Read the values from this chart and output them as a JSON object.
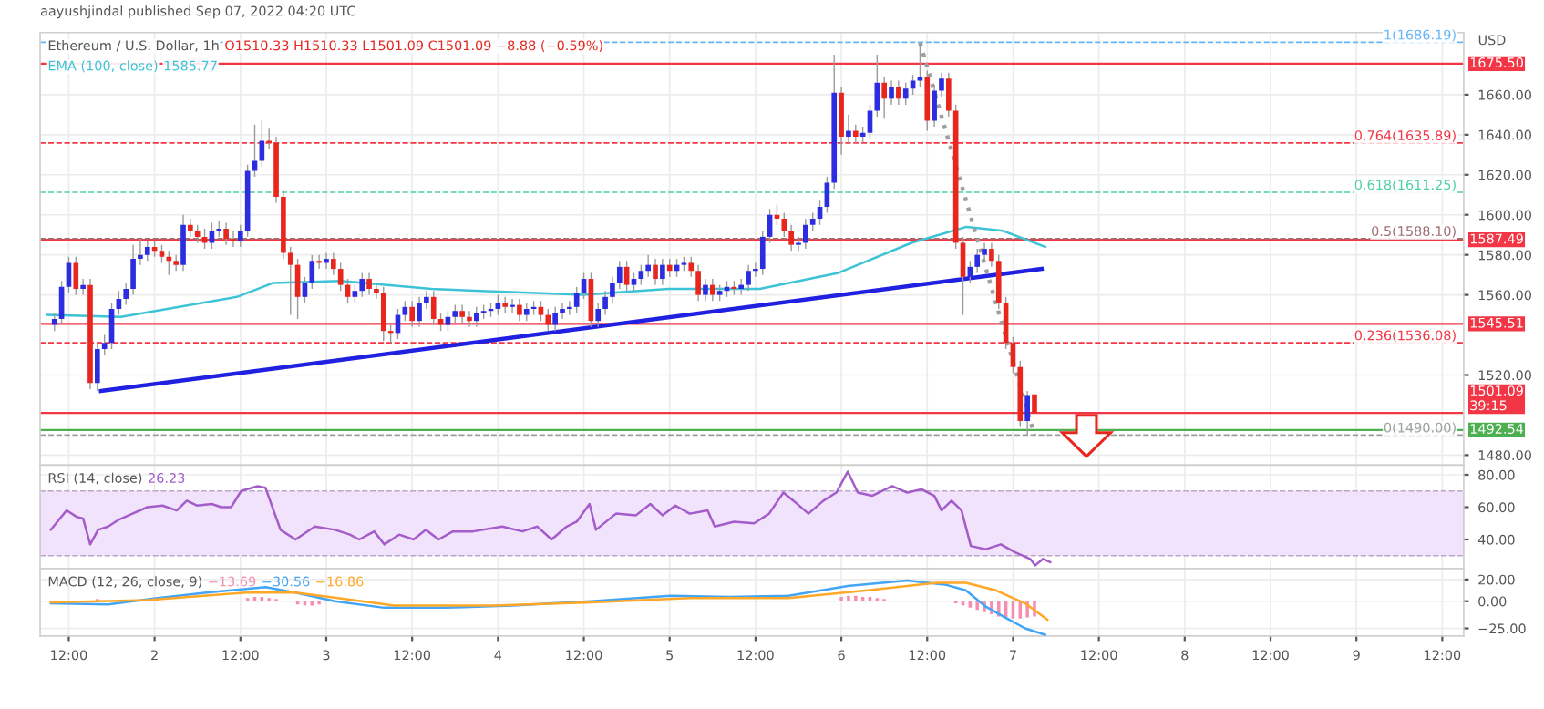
{
  "chart_data": [
    {
      "type": "candlestick",
      "title": "Ethereum / U.S. Dollar, 1h",
      "subtitle": "aayushjindal published Sep 07, 2022 04:20 UTC",
      "ylabel": "USD",
      "annotations": [
        "O1510.33 H1510.33 L1501.09 C1501.09 −8.88 (−0.59%)",
        "1585.77"
      ],
      "xlim": [
        "2022-09-01T08:00",
        "2022-09-09T15:00"
      ],
      "ylim": [
        1475,
        1691
      ],
      "yticks": [
        {
          "value": 1480,
          "label": "1480.00"
        },
        {
          "value": 1520,
          "label": "1520.00"
        },
        {
          "value": 1560,
          "label": "1560.00"
        },
        {
          "value": 1580,
          "label": "1580.00"
        },
        {
          "value": 1600,
          "label": "1600.00"
        },
        {
          "value": 1620,
          "label": "1620.00"
        },
        {
          "value": 1640,
          "label": "1640.00"
        },
        {
          "value": 1660,
          "label": "1660.00"
        }
      ],
      "grid": true,
      "tick_labels": "y",
      "series": [
        {
          "type": "candlestick",
          "x": [
            "2022-09-01T10:00",
            "2022-09-01T11:00",
            "2022-09-01T12:00",
            "2022-09-01T13:00",
            "2022-09-01T14:00",
            "2022-09-01T15:00",
            "2022-09-01T16:00",
            "2022-09-01T17:00",
            "2022-09-01T18:00",
            "2022-09-01T19:00",
            "2022-09-01T20:00",
            "2022-09-01T21:00",
            "2022-09-01T22:00",
            "2022-09-01T23:00",
            "2022-09-02T00:00",
            "2022-09-02T01:00",
            "2022-09-02T02:00",
            "2022-09-02T03:00",
            "2022-09-02T04:00",
            "2022-09-02T05:00",
            "2022-09-02T06:00",
            "2022-09-02T07:00",
            "2022-09-02T08:00",
            "2022-09-02T09:00",
            "2022-09-02T10:00",
            "2022-09-02T11:00",
            "2022-09-02T12:00",
            "2022-09-02T13:00",
            "2022-09-02T14:00",
            "2022-09-02T15:00",
            "2022-09-02T16:00",
            "2022-09-02T17:00",
            "2022-09-02T18:00",
            "2022-09-02T19:00",
            "2022-09-02T20:00",
            "2022-09-02T21:00",
            "2022-09-02T22:00",
            "2022-09-02T23:00",
            "2022-09-03T00:00",
            "2022-09-03T01:00",
            "2022-09-03T02:00",
            "2022-09-03T03:00",
            "2022-09-03T04:00",
            "2022-09-03T05:00",
            "2022-09-03T06:00",
            "2022-09-03T07:00",
            "2022-09-03T08:00",
            "2022-09-03T09:00",
            "2022-09-03T10:00",
            "2022-09-03T11:00",
            "2022-09-03T12:00",
            "2022-09-03T13:00",
            "2022-09-03T14:00",
            "2022-09-03T15:00",
            "2022-09-03T16:00",
            "2022-09-03T17:00",
            "2022-09-03T18:00",
            "2022-09-03T19:00",
            "2022-09-03T20:00",
            "2022-09-03T21:00",
            "2022-09-03T22:00",
            "2022-09-03T23:00",
            "2022-09-04T00:00",
            "2022-09-04T01:00",
            "2022-09-04T02:00",
            "2022-09-04T03:00",
            "2022-09-04T04:00",
            "2022-09-04T05:00",
            "2022-09-04T06:00",
            "2022-09-04T07:00",
            "2022-09-04T08:00",
            "2022-09-04T09:00",
            "2022-09-04T10:00",
            "2022-09-04T11:00",
            "2022-09-04T12:00",
            "2022-09-04T13:00",
            "2022-09-04T14:00",
            "2022-09-04T15:00",
            "2022-09-04T16:00",
            "2022-09-04T17:00",
            "2022-09-04T18:00",
            "2022-09-04T19:00",
            "2022-09-04T20:00",
            "2022-09-04T21:00",
            "2022-09-04T22:00",
            "2022-09-04T23:00",
            "2022-09-05T00:00",
            "2022-09-05T01:00",
            "2022-09-05T02:00",
            "2022-09-05T03:00",
            "2022-09-05T04:00",
            "2022-09-05T05:00",
            "2022-09-05T06:00",
            "2022-09-05T07:00",
            "2022-09-05T08:00",
            "2022-09-05T09:00",
            "2022-09-05T10:00",
            "2022-09-05T11:00",
            "2022-09-05T12:00",
            "2022-09-05T13:00",
            "2022-09-05T14:00",
            "2022-09-05T15:00",
            "2022-09-05T16:00",
            "2022-09-05T17:00",
            "2022-09-05T18:00",
            "2022-09-05T19:00",
            "2022-09-05T20:00",
            "2022-09-05T21:00",
            "2022-09-05T22:00",
            "2022-09-05T23:00",
            "2022-09-06T00:00",
            "2022-09-06T01:00",
            "2022-09-06T02:00",
            "2022-09-06T03:00",
            "2022-09-06T04:00",
            "2022-09-06T05:00",
            "2022-09-06T06:00",
            "2022-09-06T07:00",
            "2022-09-06T08:00",
            "2022-09-06T09:00",
            "2022-09-06T10:00",
            "2022-09-06T11:00",
            "2022-09-06T12:00",
            "2022-09-06T13:00",
            "2022-09-06T14:00",
            "2022-09-06T15:00",
            "2022-09-06T16:00",
            "2022-09-06T17:00",
            "2022-09-06T18:00",
            "2022-09-06T19:00",
            "2022-09-06T20:00",
            "2022-09-06T21:00",
            "2022-09-06T22:00",
            "2022-09-06T23:00",
            "2022-09-07T00:00",
            "2022-09-07T01:00",
            "2022-09-07T02:00",
            "2022-09-07T03:00"
          ],
          "ohlc": [
            [
              1545,
              1551,
              1542,
              1548
            ],
            [
              1548,
              1567,
              1545,
              1564
            ],
            [
              1564,
              1579,
              1561,
              1576
            ],
            [
              1576,
              1579,
              1560,
              1563
            ],
            [
              1563,
              1568,
              1560,
              1565
            ],
            [
              1565,
              1568,
              1513,
              1516
            ],
            [
              1516,
              1536,
              1512,
              1533
            ],
            [
              1533,
              1540,
              1530,
              1536
            ],
            [
              1536,
              1556,
              1533,
              1553
            ],
            [
              1553,
              1562,
              1550,
              1558
            ],
            [
              1558,
              1566,
              1555,
              1563
            ],
            [
              1563,
              1585,
              1560,
              1578
            ],
            [
              1578,
              1588,
              1575,
              1580
            ],
            [
              1580,
              1587,
              1577,
              1584
            ],
            [
              1584,
              1587,
              1579,
              1582
            ],
            [
              1582,
              1585,
              1576,
              1579
            ],
            [
              1579,
              1582,
              1570,
              1577
            ],
            [
              1577,
              1580,
              1572,
              1575
            ],
            [
              1575,
              1600,
              1572,
              1595
            ],
            [
              1595,
              1598,
              1589,
              1592
            ],
            [
              1592,
              1595,
              1586,
              1589
            ],
            [
              1589,
              1593,
              1583,
              1586
            ],
            [
              1586,
              1596,
              1583,
              1592
            ],
            [
              1592,
              1597,
              1589,
              1593
            ],
            [
              1593,
              1596,
              1585,
              1588
            ],
            [
              1588,
              1592,
              1584,
              1587
            ],
            [
              1587,
              1595,
              1584,
              1592
            ],
            [
              1592,
              1625,
              1589,
              1622
            ],
            [
              1622,
              1645,
              1619,
              1627
            ],
            [
              1627,
              1647,
              1624,
              1637
            ],
            [
              1637,
              1643,
              1633,
              1636
            ],
            [
              1636,
              1639,
              1606,
              1609
            ],
            [
              1609,
              1612,
              1578,
              1581
            ],
            [
              1581,
              1584,
              1550,
              1575
            ],
            [
              1575,
              1578,
              1548,
              1559
            ],
            [
              1559,
              1569,
              1556,
              1566
            ],
            [
              1566,
              1580,
              1563,
              1577
            ],
            [
              1577,
              1580,
              1573,
              1576
            ],
            [
              1576,
              1581,
              1573,
              1578
            ],
            [
              1578,
              1581,
              1570,
              1573
            ],
            [
              1573,
              1576,
              1562,
              1565
            ],
            [
              1565,
              1568,
              1556,
              1559
            ],
            [
              1559,
              1565,
              1556,
              1562
            ],
            [
              1562,
              1571,
              1559,
              1568
            ],
            [
              1568,
              1571,
              1560,
              1563
            ],
            [
              1563,
              1566,
              1558,
              1561
            ],
            [
              1561,
              1564,
              1537,
              1542
            ],
            [
              1542,
              1545,
              1536,
              1541
            ],
            [
              1541,
              1553,
              1538,
              1550
            ],
            [
              1550,
              1557,
              1547,
              1554
            ],
            [
              1554,
              1557,
              1544,
              1547
            ],
            [
              1547,
              1559,
              1544,
              1556
            ],
            [
              1556,
              1562,
              1553,
              1559
            ],
            [
              1559,
              1562,
              1545,
              1548
            ],
            [
              1548,
              1551,
              1542,
              1545
            ],
            [
              1545,
              1552,
              1542,
              1549
            ],
            [
              1549,
              1555,
              1546,
              1552
            ],
            [
              1552,
              1555,
              1546,
              1549
            ],
            [
              1549,
              1552,
              1544,
              1547
            ],
            [
              1547,
              1554,
              1544,
              1551
            ],
            [
              1551,
              1555,
              1548,
              1552
            ],
            [
              1552,
              1556,
              1549,
              1553
            ],
            [
              1553,
              1560,
              1550,
              1556
            ],
            [
              1556,
              1559,
              1551,
              1554
            ],
            [
              1554,
              1558,
              1551,
              1555
            ],
            [
              1555,
              1558,
              1547,
              1550
            ],
            [
              1550,
              1556,
              1547,
              1553
            ],
            [
              1553,
              1557,
              1550,
              1554
            ],
            [
              1554,
              1557,
              1547,
              1550
            ],
            [
              1550,
              1553,
              1542,
              1545
            ],
            [
              1545,
              1554,
              1542,
              1551
            ],
            [
              1551,
              1556,
              1548,
              1553
            ],
            [
              1553,
              1557,
              1550,
              1554
            ],
            [
              1554,
              1564,
              1551,
              1561
            ],
            [
              1561,
              1571,
              1558,
              1568
            ],
            [
              1568,
              1571,
              1544,
              1547
            ],
            [
              1547,
              1556,
              1544,
              1553
            ],
            [
              1553,
              1562,
              1550,
              1559
            ],
            [
              1559,
              1569,
              1556,
              1566
            ],
            [
              1566,
              1577,
              1563,
              1574
            ],
            [
              1574,
              1577,
              1562,
              1565
            ],
            [
              1565,
              1571,
              1562,
              1568
            ],
            [
              1568,
              1575,
              1565,
              1572
            ],
            [
              1572,
              1580,
              1569,
              1575
            ],
            [
              1575,
              1578,
              1565,
              1568
            ],
            [
              1568,
              1578,
              1565,
              1575
            ],
            [
              1575,
              1578,
              1569,
              1572
            ],
            [
              1572,
              1578,
              1569,
              1575
            ],
            [
              1575,
              1579,
              1572,
              1576
            ],
            [
              1576,
              1579,
              1569,
              1572
            ],
            [
              1572,
              1575,
              1557,
              1560
            ],
            [
              1560,
              1568,
              1557,
              1565
            ],
            [
              1565,
              1568,
              1557,
              1560
            ],
            [
              1560,
              1565,
              1557,
              1562
            ],
            [
              1562,
              1567,
              1559,
              1564
            ],
            [
              1564,
              1567,
              1560,
              1563
            ],
            [
              1563,
              1568,
              1560,
              1565
            ],
            [
              1565,
              1575,
              1562,
              1572
            ],
            [
              1572,
              1576,
              1569,
              1573
            ],
            [
              1573,
              1592,
              1570,
              1589
            ],
            [
              1589,
              1603,
              1586,
              1600
            ],
            [
              1600,
              1605,
              1595,
              1598
            ],
            [
              1598,
              1601,
              1589,
              1592
            ],
            [
              1592,
              1595,
              1582,
              1585
            ],
            [
              1585,
              1589,
              1582,
              1586
            ],
            [
              1586,
              1598,
              1583,
              1595
            ],
            [
              1595,
              1601,
              1592,
              1598
            ],
            [
              1598,
              1607,
              1595,
              1604
            ],
            [
              1604,
              1619,
              1601,
              1616
            ],
            [
              1616,
              1680,
              1613,
              1661
            ],
            [
              1661,
              1664,
              1630,
              1639
            ],
            [
              1639,
              1650,
              1636,
              1642
            ],
            [
              1642,
              1645,
              1636,
              1639
            ],
            [
              1639,
              1644,
              1636,
              1641
            ],
            [
              1641,
              1655,
              1638,
              1652
            ],
            [
              1652,
              1680,
              1649,
              1666
            ],
            [
              1666,
              1669,
              1648,
              1658
            ],
            [
              1658,
              1667,
              1655,
              1664
            ],
            [
              1664,
              1667,
              1655,
              1658
            ],
            [
              1658,
              1666,
              1655,
              1663
            ],
            [
              1663,
              1670,
              1660,
              1667
            ],
            [
              1667,
              1686,
              1664,
              1669
            ],
            [
              1669,
              1672,
              1642,
              1647
            ],
            [
              1647,
              1665,
              1644,
              1662
            ],
            [
              1662,
              1671,
              1659,
              1668
            ],
            [
              1668,
              1671,
              1649,
              1652
            ],
            [
              1652,
              1655,
              1583,
              1586
            ],
            [
              1586,
              1589,
              1550,
              1569
            ],
            [
              1569,
              1577,
              1566,
              1574
            ],
            [
              1574,
              1583,
              1571,
              1580
            ],
            [
              1580,
              1586,
              1577,
              1583
            ],
            [
              1583,
              1586,
              1574,
              1577
            ],
            [
              1577,
              1580,
              1553,
              1556
            ],
            [
              1556,
              1559,
              1533,
              1536
            ],
            [
              1536,
              1539,
              1521,
              1524
            ],
            [
              1524,
              1527,
              1494,
              1497
            ],
            [
              1497,
              1512,
              1490,
              1510
            ],
            [
              1510.33,
              1510.33,
              1501.09,
              1501.09
            ]
          ],
          "colors": [
            "#2c2ce0",
            "#2c2ce0",
            "#2c2ce0",
            "#e8261e",
            "#2c2ce0",
            "#e8261e",
            "#2c2ce0",
            "#2c2ce0",
            "#2c2ce0",
            "#2c2ce0",
            "#2c2ce0",
            "#2c2ce0",
            "#2c2ce0",
            "#2c2ce0",
            "#e8261e",
            "#e8261e",
            "#e8261e",
            "#e8261e",
            "#2c2ce0",
            "#e8261e",
            "#e8261e",
            "#e8261e",
            "#2c2ce0",
            "#2c2ce0",
            "#e8261e",
            "#e8261e",
            "#2c2ce0",
            "#2c2ce0",
            "#2c2ce0",
            "#2c2ce0",
            "#e8261e",
            "#e8261e",
            "#e8261e",
            "#e8261e",
            "#e8261e",
            "#2c2ce0",
            "#2c2ce0",
            "#e8261e",
            "#2c2ce0",
            "#e8261e",
            "#e8261e",
            "#e8261e",
            "#2c2ce0",
            "#2c2ce0",
            "#e8261e",
            "#e8261e",
            "#e8261e",
            "#e8261e",
            "#2c2ce0",
            "#2c2ce0",
            "#e8261e",
            "#2c2ce0",
            "#2c2ce0",
            "#e8261e",
            "#e8261e",
            "#2c2ce0",
            "#2c2ce0",
            "#e8261e",
            "#e8261e",
            "#2c2ce0",
            "#2c2ce0",
            "#2c2ce0",
            "#2c2ce0",
            "#e8261e",
            "#2c2ce0",
            "#e8261e",
            "#2c2ce0",
            "#2c2ce0",
            "#e8261e",
            "#e8261e",
            "#2c2ce0",
            "#2c2ce0",
            "#2c2ce0",
            "#2c2ce0",
            "#2c2ce0",
            "#e8261e",
            "#2c2ce0",
            "#2c2ce0",
            "#2c2ce0",
            "#2c2ce0",
            "#e8261e",
            "#2c2ce0",
            "#2c2ce0",
            "#2c2ce0",
            "#e8261e",
            "#2c2ce0",
            "#e8261e",
            "#2c2ce0",
            "#2c2ce0",
            "#e8261e",
            "#e8261e",
            "#2c2ce0",
            "#e8261e",
            "#2c2ce0",
            "#2c2ce0",
            "#e8261e",
            "#2c2ce0",
            "#2c2ce0",
            "#2c2ce0",
            "#2c2ce0",
            "#2c2ce0",
            "#e8261e",
            "#e8261e",
            "#e8261e",
            "#2c2ce0",
            "#2c2ce0",
            "#2c2ce0",
            "#2c2ce0",
            "#2c2ce0",
            "#2c2ce0",
            "#e8261e",
            "#2c2ce0",
            "#e8261e",
            "#2c2ce0",
            "#2c2ce0",
            "#2c2ce0",
            "#e8261e",
            "#2c2ce0",
            "#e8261e",
            "#2c2ce0",
            "#2c2ce0",
            "#2c2ce0",
            "#e8261e",
            "#2c2ce0",
            "#2c2ce0",
            "#e8261e",
            "#e8261e",
            "#e8261e",
            "#2c2ce0",
            "#2c2ce0",
            "#2c2ce0",
            "#e8261e",
            "#e8261e",
            "#e8261e",
            "#e8261e",
            "#e8261e",
            "#2c2ce0",
            "#e8261e"
          ]
        },
        {
          "type": "line",
          "name": "EMA (100, close)",
          "color": "#3cc4d6",
          "x": [
            "2022-09-01T09:00",
            "2022-09-01T19:18",
            "2022-09-02T11:30",
            "2022-09-02T16:36",
            "2022-09-03T02:00",
            "2022-09-03T14:42",
            "2022-09-04T11:54",
            "2022-09-04T23:48",
            "2022-09-05T12:36",
            "2022-09-05T23:36",
            "2022-09-06T09:48",
            "2022-09-06T17:30",
            "2022-09-06T22:36",
            "2022-09-07T04:30"
          ],
          "values": [
            1550,
            1549,
            1559,
            1566,
            1567,
            1563,
            1560,
            1563,
            1563,
            1571,
            1586,
            1594,
            1592,
            1584
          ]
        },
        {
          "type": "line",
          "color": "#2020e0",
          "x": [
            "2022-09-01T16:30",
            "2022-09-07T04:00"
          ],
          "values": [
            1512,
            1573
          ]
        },
        {
          "type": "line",
          "color": "#9e9e9e",
          "line_style": "dotted",
          "x": [
            "2022-09-06T11:00",
            "2022-09-07T03:00"
          ],
          "values": [
            1686,
            1490
          ]
        }
      ],
      "ref_lines": [
        {
          "axis": "y",
          "value": 1675.5,
          "label": "1675.50",
          "color": "#f23645"
        },
        {
          "axis": "y",
          "value": 1587.49,
          "label": "1587.49",
          "color": "#f23645"
        },
        {
          "axis": "y",
          "value": 1545.51,
          "label": "1545.51",
          "color": "#f23645"
        },
        {
          "axis": "y",
          "value": 1501.09,
          "label": "1501.09\n39:15",
          "color": "#f23645"
        },
        {
          "axis": "y",
          "value": 1492.54,
          "label": "1492.54",
          "color": "#4caf50"
        },
        {
          "axis": "y",
          "value": 1686.19,
          "label": "1(1686.19)",
          "color": "#64b5f6",
          "line_style": "dashed"
        },
        {
          "axis": "y",
          "value": 1635.89,
          "label": "0.764(1635.89)",
          "color": "#f23645",
          "line_style": "dashed"
        },
        {
          "axis": "y",
          "value": 1611.25,
          "label": "0.618(1611.25)",
          "color": "#4dd0a0",
          "line_style": "dashed"
        },
        {
          "axis": "y",
          "value": 1588.1,
          "label": "0.5(1588.10)",
          "color": "#9e7070",
          "line_style": "dashed"
        },
        {
          "axis": "y",
          "value": 1536.08,
          "label": "0.236(1536.08)",
          "color": "#f23645",
          "line_style": "dashed"
        },
        {
          "axis": "y",
          "value": 1490,
          "label": "0(1490.00)",
          "color": "#9e9e9e",
          "line_style": "dashed"
        }
      ]
    },
    {
      "type": "line",
      "title": "RSI (14, close)",
      "annotations": [
        "26.23"
      ],
      "xlim": [
        "2022-09-01T08:00",
        "2022-09-09T15:00"
      ],
      "ylim": [
        22,
        86
      ],
      "yticks": [
        {
          "value": 40,
          "label": "40.00"
        },
        {
          "value": 60,
          "label": "60.00"
        },
        {
          "value": 80,
          "label": "80.00"
        }
      ],
      "grid": true,
      "tick_labels": "y",
      "bands": [
        {
          "axis": "y",
          "from": 30,
          "to": 70,
          "color": "#f1e3fc"
        }
      ],
      "series": [
        {
          "color": "#a35cc9",
          "x": [
            "2022-09-01T09:30",
            "2022-09-01T11:42",
            "2022-09-01T13:06",
            "2022-09-01T14:00",
            "2022-09-01T15:00",
            "2022-09-01T16:06",
            "2022-09-01T17:30",
            "2022-09-01T18:54",
            "2022-09-01T20:54",
            "2022-09-01T23:00",
            "2022-09-02T01:06",
            "2022-09-02T03:06",
            "2022-09-02T04:30",
            "2022-09-02T05:54",
            "2022-09-02T08:00",
            "2022-09-02T09:18",
            "2022-09-02T10:42",
            "2022-09-02T12:06",
            "2022-09-02T14:24",
            "2022-09-02T15:30",
            "2022-09-02T17:36",
            "2022-09-02T19:42",
            "2022-09-02T22:24",
            "2022-09-03T01:12",
            "2022-09-03T03:18",
            "2022-09-03T04:36",
            "2022-09-03T06:42",
            "2022-09-03T08:06",
            "2022-09-03T10:12",
            "2022-09-03T12:12",
            "2022-09-03T13:54",
            "2022-09-03T15:42",
            "2022-09-03T17:42",
            "2022-09-03T20:30",
            "2022-09-04T00:36",
            "2022-09-04T03:24",
            "2022-09-04T05:30",
            "2022-09-04T07:30",
            "2022-09-04T09:36",
            "2022-09-04T11:00",
            "2022-09-04T12:48",
            "2022-09-04T13:42",
            "2022-09-04T16:30",
            "2022-09-04T19:18",
            "2022-09-04T21:18",
            "2022-09-04T23:00",
            "2022-09-05T00:48",
            "2022-09-05T02:48",
            "2022-09-05T05:18",
            "2022-09-05T06:18",
            "2022-09-05T09:00",
            "2022-09-05T11:48",
            "2022-09-05T13:54",
            "2022-09-05T15:54",
            "2022-09-05T17:18",
            "2022-09-05T19:24",
            "2022-09-05T21:30",
            "2022-09-05T23:18",
            "2022-09-06T00:54",
            "2022-09-06T02:18",
            "2022-09-06T04:18",
            "2022-09-06T07:06",
            "2022-09-06T09:12",
            "2022-09-06T11:12",
            "2022-09-06T13:00",
            "2022-09-06T14:00",
            "2022-09-06T15:24",
            "2022-09-06T16:48",
            "2022-09-06T18:06",
            "2022-09-06T20:12",
            "2022-09-06T22:18",
            "2022-09-07T00:18",
            "2022-09-07T02:24",
            "2022-09-07T03:06",
            "2022-09-07T04:12",
            "2022-09-07T05:12"
          ],
          "values": [
            46,
            58,
            54,
            53,
            37,
            46,
            48,
            52,
            56,
            60,
            61,
            58,
            64,
            61,
            62,
            60,
            60,
            70,
            73,
            72,
            46,
            40,
            48,
            46,
            43,
            40,
            45,
            37,
            43,
            40,
            46,
            40,
            45,
            45,
            48,
            45,
            48,
            40,
            48,
            51,
            62,
            46,
            56,
            55,
            62,
            55,
            61,
            56,
            58,
            48,
            51,
            50,
            56,
            69,
            64,
            56,
            64,
            69,
            82,
            69,
            67,
            73,
            69,
            71,
            67,
            58,
            64,
            58,
            36,
            34,
            37,
            32,
            28,
            24,
            28,
            26
          ]
        }
      ]
    },
    {
      "type": "line",
      "title": "MACD (12, 26, close, 9)",
      "annotations": [
        "−13.69",
        "−30.56",
        "−16.86"
      ],
      "xlim": [
        "2022-09-01T08:00",
        "2022-09-09T15:00"
      ],
      "xticks": [
        {
          "value": "2022-09-01T12:00",
          "label": "12:00"
        },
        {
          "value": "2022-09-02",
          "label": "2"
        },
        {
          "value": "2022-09-02T12:00",
          "label": "12:00"
        },
        {
          "value": "2022-09-03",
          "label": "3"
        },
        {
          "value": "2022-09-03T12:00",
          "label": "12:00"
        },
        {
          "value": "2022-09-04",
          "label": "4"
        },
        {
          "value": "2022-09-04T12:00",
          "label": "12:00"
        },
        {
          "value": "2022-09-05",
          "label": "5"
        },
        {
          "value": "2022-09-05T12:00",
          "label": "12:00"
        },
        {
          "value": "2022-09-06",
          "label": "6"
        },
        {
          "value": "2022-09-06T12:00",
          "label": "12:00"
        },
        {
          "value": "2022-09-07",
          "label": "7"
        },
        {
          "value": "2022-09-07T12:00",
          "label": "12:00"
        },
        {
          "value": "2022-09-08",
          "label": "8"
        },
        {
          "value": "2022-09-08T12:00",
          "label": "12:00"
        },
        {
          "value": "2022-09-09",
          "label": "9"
        },
        {
          "value": "2022-09-09T12:00",
          "label": "12:00"
        }
      ],
      "ylim": [
        -32,
        30
      ],
      "yticks": [
        {
          "value": -25,
          "label": "−25.00"
        },
        {
          "value": 0,
          "label": "0.00"
        },
        {
          "value": 20,
          "label": "20.00"
        }
      ],
      "grid": true,
      "series": [
        {
          "type": "bar",
          "color": "#f48fb1",
          "x": [
            "2022-09-01T16:00",
            "2022-09-01T18:00",
            "2022-09-01T20:00",
            "2022-09-02T13:00",
            "2022-09-02T14:00",
            "2022-09-02T15:00",
            "2022-09-02T16:00",
            "2022-09-02T17:00",
            "2022-09-02T20:00",
            "2022-09-02T21:00",
            "2022-09-02T22:00",
            "2022-09-02T23:00",
            "2022-09-06T00:00",
            "2022-09-06T01:00",
            "2022-09-06T02:00",
            "2022-09-06T03:00",
            "2022-09-06T04:00",
            "2022-09-06T05:00",
            "2022-09-06T06:00",
            "2022-09-06T16:00",
            "2022-09-06T17:00",
            "2022-09-06T18:00",
            "2022-09-06T19:00",
            "2022-09-06T20:00",
            "2022-09-06T21:00",
            "2022-09-06T22:00",
            "2022-09-06T23:00",
            "2022-09-07T00:00",
            "2022-09-07T01:00",
            "2022-09-07T02:00",
            "2022-09-07T03:00"
          ],
          "values": [
            2,
            null,
            null,
            3,
            4,
            4,
            3,
            2,
            -3,
            -4,
            -4,
            -3,
            4,
            5,
            5,
            4,
            4,
            3,
            2,
            -2,
            -4,
            -6,
            -8,
            -10,
            -12,
            -14,
            -15,
            -16,
            -16,
            -15,
            -14
          ]
        },
        {
          "color": "#42a5f5",
          "x": [
            "2022-09-01T09:30",
            "2022-09-01T17:30",
            "2022-09-02T00:24",
            "2022-09-02T07:18",
            "2022-09-02T15:30",
            "2022-09-02T19:42",
            "2022-09-03T01:12",
            "2022-09-03T08:06",
            "2022-09-03T16:24",
            "2022-09-04T02:00",
            "2022-09-04T13:00",
            "2022-09-05T00:06",
            "2022-09-05T08:24",
            "2022-09-05T16:36",
            "2022-09-06T00:54",
            "2022-09-06T09:12",
            "2022-09-06T14:42",
            "2022-09-06T17:24",
            "2022-09-06T20:12",
            "2022-09-06T22:54",
            "2022-09-07T01:42",
            "2022-09-07T04:30"
          ],
          "values": [
            -2,
            -3,
            3,
            8,
            13,
            8,
            0,
            -6,
            -6,
            -4,
            0,
            5,
            4,
            5,
            14,
            19,
            15,
            10,
            -5,
            -15,
            -25,
            -31
          ]
        },
        {
          "color": "#ffa726",
          "x": [
            "2022-09-01T09:30",
            "2022-09-01T23:00",
            "2022-09-02T12:48",
            "2022-09-02T19:42",
            "2022-09-03T02:36",
            "2022-09-03T09:30",
            "2022-09-03T23:18",
            "2022-09-04T13:00",
            "2022-09-05T02:48",
            "2022-09-05T16:36",
            "2022-09-06T03:42",
            "2022-09-06T13:18",
            "2022-09-06T17:24",
            "2022-09-06T21:36",
            "2022-09-07T01:42",
            "2022-09-07T04:48"
          ],
          "values": [
            -1,
            1,
            8,
            8,
            2,
            -4,
            -4,
            -1,
            3,
            3,
            10,
            17,
            17,
            10,
            -2,
            -17
          ]
        }
      ]
    }
  ]
}
